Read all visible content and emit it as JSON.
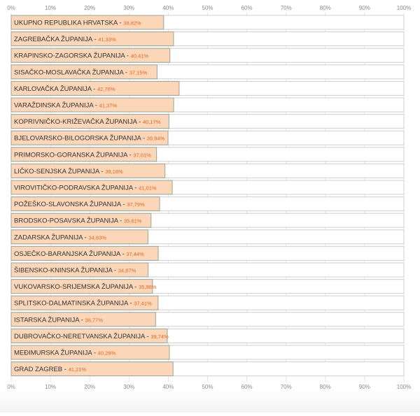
{
  "chart_data": {
    "type": "bar",
    "orientation": "horizontal",
    "xlim": [
      0,
      100
    ],
    "x_ticks": [
      "0%",
      "10%",
      "20%",
      "30%",
      "40%",
      "50%",
      "60%",
      "70%",
      "80%",
      "90%",
      "100%"
    ],
    "grid": true,
    "categories": [
      "UKUPNO REPUBLIKA HRVATSKA",
      "ZAGREBAČKA ŽUPANIJA",
      "KRAPINSKO-ZAGORSKA ŽUPANIJA",
      "SISAČKO-MOSLAVAČKA ŽUPANIJA",
      "KARLOVAČKA ŽUPANIJA",
      "VARAŽDINSKA ŽUPANIJA",
      "KOPRIVNIČKO-KRIŽEVAČKA ŽUPANIJA",
      "BJELOVARSKO-BILOGORSKA ŽUPANIJA",
      "PRIMORSKO-GORANSKA ŽUPANIJA",
      "LIČKO-SENJSKA ŽUPANIJA",
      "VIROVITIČKO-PODRAVSKA ŽUPANIJA",
      "POŽEŠKO-SLAVONSKA ŽUPANIJA",
      "BRODSKO-POSAVSKA ŽUPANIJA",
      "ZADARSKA ŽUPANIJA",
      "OSJEČKO-BARANJSKA ŽUPANIJA",
      "ŠIBENSKO-KNINSKA ŽUPANIJA",
      "VUKOVARSKO-SRIJEMSKA ŽUPANIJA",
      "SPLITSKO-DALMATINSKA ŽUPANIJA",
      "ISTARSKA ŽUPANIJA",
      "DUBROVAČKO-NERETVANSKA ŽUPANIJA",
      "MEĐIMURSKA ŽUPANIJA",
      "GRAD ZAGREB"
    ],
    "values": [
      38.82,
      41.33,
      40.41,
      37.15,
      42.76,
      41.37,
      40.17,
      39.94,
      37.01,
      39.16,
      41.01,
      37.79,
      35.61,
      34.83,
      37.44,
      34.87,
      35.98,
      37.41,
      36.77,
      39.74,
      40.28,
      41.21
    ],
    "value_labels": [
      "38,82%",
      "41,33%",
      "40,41%",
      "37,15%",
      "42,76%",
      "41,37%",
      "40,17%",
      "39,94%",
      "37,01%",
      "39,16%",
      "41,01%",
      "37,79%",
      "35,61%",
      "34,83%",
      "37,44%",
      "34,87%",
      "35,98%",
      "37,41%",
      "36,77%",
      "39,74%",
      "40,28%",
      "41,21%"
    ],
    "colors": {
      "bar_fill": "#fbd6b8",
      "bar_stroke": "#9aa49a",
      "track_fill": "#ffffff",
      "track_stroke": "#cfcfcf",
      "label": "#333333",
      "value": "#e2671e",
      "tick": "#8a8a8a",
      "grid": "#e4e4e4"
    }
  }
}
